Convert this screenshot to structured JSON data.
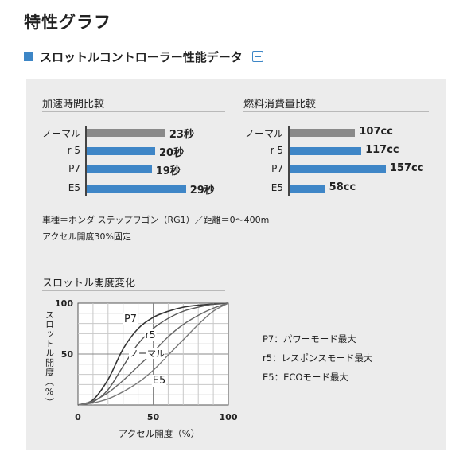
{
  "page": {
    "title": "特性グラフ",
    "section_title": "スロットルコントローラー性能データ"
  },
  "colors": {
    "accent": "#3d86c6",
    "gray_bar": "#8a8a8a",
    "blue_bar": "#3f86c7",
    "panel_bg": "#ececec"
  },
  "icons": {
    "collapse": "minus-square-icon",
    "section_marker": "square-bullet-icon"
  },
  "accel_chart": {
    "title": "加速時間比較",
    "unit": "秒",
    "rows": [
      {
        "label": "ノーマル",
        "value": 23,
        "display": "23秒",
        "color": "#8a8a8a"
      },
      {
        "label": "r 5",
        "value": 20,
        "display": "20秒",
        "color": "#3f86c7"
      },
      {
        "label": "P7",
        "value": 19,
        "display": "19秒",
        "color": "#3f86c7"
      },
      {
        "label": "E5",
        "value": 29,
        "display": "29秒",
        "color": "#3f86c7"
      }
    ]
  },
  "fuel_chart": {
    "title": "燃料消費量比較",
    "unit": "cc",
    "rows": [
      {
        "label": "ノーマル",
        "value": 107,
        "display": "107cc",
        "color": "#8a8a8a"
      },
      {
        "label": "r 5",
        "value": 117,
        "display": "117cc",
        "color": "#3f86c7"
      },
      {
        "label": "P7",
        "value": 157,
        "display": "157cc",
        "color": "#3f86c7"
      },
      {
        "label": "E5",
        "value": 58,
        "display": "58cc",
        "color": "#3f86c7"
      }
    ]
  },
  "notes": {
    "line1": "車種＝ホンダ ステップワゴン（RG1）／距離＝0～400m",
    "line2": "アクセル開度30%固定"
  },
  "throttle_chart": {
    "title": "スロットル開度変化",
    "ylabel": "スロットル開度（%）",
    "xlabel": "アクセル開度（%）",
    "x_ticks": [
      "0",
      "50",
      "100"
    ],
    "y_ticks": [
      "50",
      "100"
    ],
    "curve_labels": [
      "P7",
      "r5",
      "ノーマル",
      "E5"
    ]
  },
  "legend": {
    "line1": "P7：パワーモード最大",
    "line2": "r5：レスポンスモード最大",
    "line3": "E5：ECOモード最大"
  },
  "chart_data": [
    {
      "type": "bar",
      "title": "加速時間比較",
      "categories": [
        "ノーマル",
        "r 5",
        "P7",
        "E5"
      ],
      "values": [
        23,
        20,
        19,
        29
      ],
      "unit": "秒"
    },
    {
      "type": "bar",
      "title": "燃料消費量比較",
      "categories": [
        "ノーマル",
        "r 5",
        "P7",
        "E5"
      ],
      "values": [
        107,
        117,
        157,
        58
      ],
      "unit": "cc"
    },
    {
      "type": "line",
      "title": "スロットル開度変化",
      "xlabel": "アクセル開度（%）",
      "ylabel": "スロットル開度（%）",
      "xlim": [
        0,
        100
      ],
      "ylim": [
        0,
        100
      ],
      "grid": true,
      "series": [
        {
          "name": "P7",
          "x": [
            0,
            10,
            20,
            30,
            40,
            50,
            60,
            70,
            80,
            90,
            100
          ],
          "y": [
            0,
            5,
            25,
            55,
            75,
            86,
            92,
            96,
            98,
            99,
            100
          ]
        },
        {
          "name": "r5",
          "x": [
            0,
            10,
            20,
            30,
            40,
            50,
            60,
            70,
            80,
            90,
            100
          ],
          "y": [
            0,
            3,
            15,
            38,
            60,
            75,
            85,
            92,
            96,
            99,
            100
          ]
        },
        {
          "name": "ノーマル",
          "x": [
            0,
            10,
            20,
            30,
            40,
            50,
            60,
            70,
            80,
            90,
            100
          ],
          "y": [
            0,
            4,
            12,
            24,
            38,
            52,
            67,
            79,
            88,
            95,
            100
          ]
        },
        {
          "name": "E5",
          "x": [
            0,
            10,
            20,
            30,
            40,
            50,
            60,
            70,
            80,
            90,
            100
          ],
          "y": [
            0,
            2,
            6,
            13,
            22,
            34,
            49,
            64,
            79,
            92,
            100
          ]
        }
      ]
    }
  ]
}
